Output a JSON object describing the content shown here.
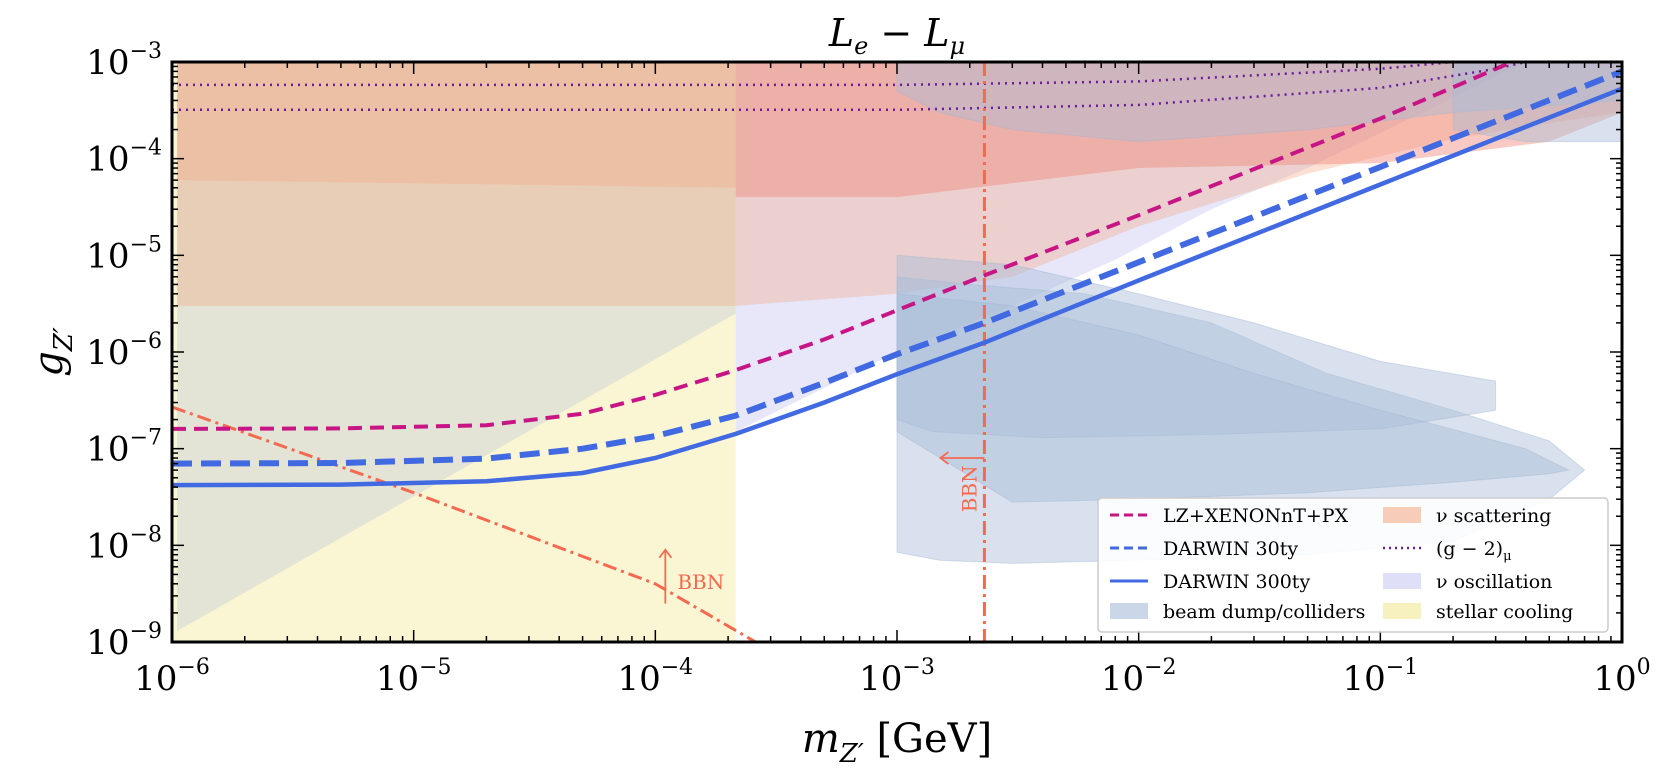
{
  "chart_data": {
    "type": "line",
    "title": "L_e − L_μ",
    "title_parts": {
      "L1": "L",
      "s1": "e",
      "op": " − ",
      "L2": "L",
      "s2": "μ"
    },
    "xlabel": "m_Z′ [GeV]",
    "xlabel_parts": {
      "m": "m",
      "sub": "Z′",
      "unit": " [GeV]"
    },
    "ylabel": "g_Z′",
    "ylabel_parts": {
      "g": "g",
      "sub": "Z′"
    },
    "x_scale": "log",
    "y_scale": "log",
    "xlim": [
      1e-06,
      1
    ],
    "ylim": [
      1e-09,
      0.001
    ],
    "x_ticks": [
      {
        "value": 1e-06,
        "base": "10",
        "exp": "−6"
      },
      {
        "value": 1e-05,
        "base": "10",
        "exp": "−5"
      },
      {
        "value": 0.0001,
        "base": "10",
        "exp": "−4"
      },
      {
        "value": 0.001,
        "base": "10",
        "exp": "−3"
      },
      {
        "value": 0.01,
        "base": "10",
        "exp": "−2"
      },
      {
        "value": 0.1,
        "base": "10",
        "exp": "−1"
      },
      {
        "value": 1,
        "base": "10",
        "exp": "0"
      }
    ],
    "y_ticks": [
      {
        "value": 1e-09,
        "base": "10",
        "exp": "−9"
      },
      {
        "value": 1e-08,
        "base": "10",
        "exp": "−8"
      },
      {
        "value": 1e-07,
        "base": "10",
        "exp": "−7"
      },
      {
        "value": 1e-06,
        "base": "10",
        "exp": "−6"
      },
      {
        "value": 1e-05,
        "base": "10",
        "exp": "−5"
      },
      {
        "value": 0.0001,
        "base": "10",
        "exp": "−4"
      },
      {
        "value": 0.001,
        "base": "10",
        "exp": "−3"
      }
    ],
    "grid": false,
    "legend_position": "lower-right",
    "series": [
      {
        "name": "LZ+XENONnT+PX",
        "color": "#c71585",
        "style": "dashed",
        "points": [
          [
            1e-06,
            1.6e-07
          ],
          [
            5e-06,
            1.62e-07
          ],
          [
            2e-05,
            1.75e-07
          ],
          [
            5e-05,
            2.3e-07
          ],
          [
            0.0001,
            3.6e-07
          ],
          [
            0.000215,
            6.5e-07
          ],
          [
            0.0005,
            1.35e-06
          ],
          [
            0.001,
            2.7e-06
          ],
          [
            0.0023,
            6.2e-06
          ],
          [
            0.01,
            2.6e-05
          ],
          [
            0.1,
            0.00026
          ],
          [
            0.35,
            0.001
          ]
        ]
      },
      {
        "name": "DARWIN 30ty",
        "color": "#4169e1",
        "style": "dashed",
        "points": [
          [
            1e-06,
            7e-08
          ],
          [
            5e-06,
            7.1e-08
          ],
          [
            2e-05,
            7.9e-08
          ],
          [
            5e-05,
            1e-07
          ],
          [
            0.0001,
            1.35e-07
          ],
          [
            0.000215,
            2.2e-07
          ],
          [
            0.0005,
            4.8e-07
          ],
          [
            0.001,
            9.5e-07
          ],
          [
            0.0023,
            2e-06
          ],
          [
            0.01,
            8.5e-06
          ],
          [
            0.1,
            8.2e-05
          ],
          [
            1,
            0.0008
          ]
        ]
      },
      {
        "name": "DARWIN 300ty",
        "color": "#4169e1",
        "style": "solid",
        "points": [
          [
            1e-06,
            4.2e-08
          ],
          [
            5e-06,
            4.25e-08
          ],
          [
            2e-05,
            4.6e-08
          ],
          [
            5e-05,
            5.6e-08
          ],
          [
            0.0001,
            8e-08
          ],
          [
            0.000215,
            1.42e-07
          ],
          [
            0.0005,
            3e-07
          ],
          [
            0.001,
            5.9e-07
          ],
          [
            0.0023,
            1.25e-06
          ],
          [
            0.01,
            5.5e-06
          ],
          [
            0.1,
            5.4e-05
          ],
          [
            1,
            0.00053
          ]
        ]
      }
    ],
    "g_minus_2": {
      "name": "(g − 2)_μ",
      "name_parts": {
        "main": "(g − 2)",
        "sub": "μ"
      },
      "color": "#6a1b9a",
      "style": "dotted",
      "upper": [
        [
          1e-06,
          0.00058
        ],
        [
          0.001,
          0.00058
        ],
        [
          0.01,
          0.00063
        ],
        [
          0.1,
          0.00085
        ],
        [
          0.2,
          0.001
        ]
      ],
      "lower": [
        [
          1e-06,
          0.00032
        ],
        [
          0.001,
          0.00032
        ],
        [
          0.01,
          0.00036
        ],
        [
          0.1,
          0.00054
        ],
        [
          0.3,
          0.00085
        ],
        [
          0.4,
          0.001
        ]
      ]
    },
    "bbn": {
      "label": "BBN",
      "color": "#f4694f",
      "style": "dashdot",
      "diagonal": [
        [
          1e-06,
          2.7e-07
        ],
        [
          1e-05,
          3.5e-08
        ],
        [
          0.0001,
          4e-09
        ],
        [
          0.00026,
          1e-09
        ]
      ],
      "vertical_x": 0.0023
    },
    "regions": [
      {
        "name": "ν scattering",
        "color": "#f4a582",
        "opacity": 0.45
      },
      {
        "name": "ν oscillation",
        "color": "#c9c9f2",
        "opacity": 0.45
      },
      {
        "name": "stellar cooling",
        "color": "#f5eeb0",
        "opacity": 0.55
      },
      {
        "name": "beam dump/colliders",
        "color": "#a9bcd8",
        "opacity": 0.45
      }
    ],
    "legend": {
      "lz": "LZ+XENONnT+PX",
      "darwin30": "DARWIN 30ty",
      "darwin300": "DARWIN 300ty",
      "beam": "beam dump/colliders",
      "nu_scat_main": "ν scattering",
      "g2_main": "(g − 2)",
      "g2_sub": "μ",
      "nu_osc_main": "ν oscillation",
      "stellar": "stellar cooling"
    }
  }
}
